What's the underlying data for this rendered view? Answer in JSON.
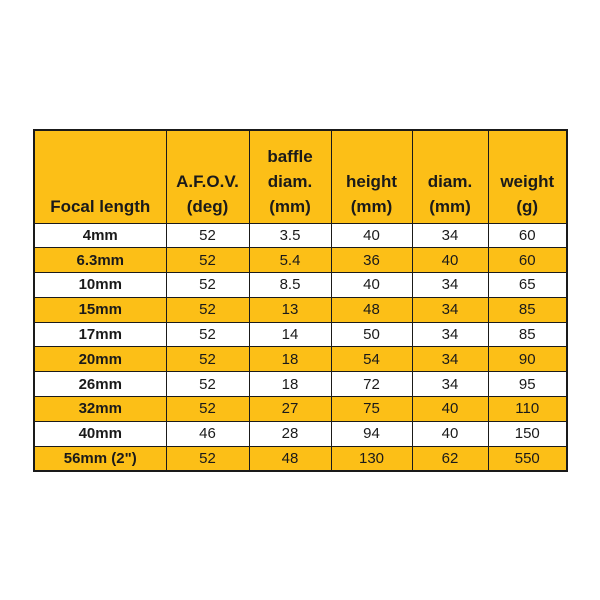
{
  "colors": {
    "accent_gold": "#fcbf17",
    "row_white": "#ffffff",
    "border": "#1a1a1a",
    "text": "#1a1a1a"
  },
  "chart_data": {
    "type": "table",
    "columns": [
      "Focal length",
      "A.F.O.V. (deg)",
      "baffle diam. (mm)",
      "height (mm)",
      "diam. (mm)",
      "weight (g)"
    ],
    "header_lines": [
      [
        "Focal length"
      ],
      [
        "A.F.O.V.",
        "(deg)"
      ],
      [
        "baffle",
        "diam.",
        "(mm)"
      ],
      [
        "height",
        "(mm)"
      ],
      [
        "diam.",
        "(mm)"
      ],
      [
        "weight",
        "(g)"
      ]
    ],
    "rows": [
      [
        "4mm",
        "52",
        "3.5",
        "40",
        "34",
        "60"
      ],
      [
        "6.3mm",
        "52",
        "5.4",
        "36",
        "40",
        "60"
      ],
      [
        "10mm",
        "52",
        "8.5",
        "40",
        "34",
        "65"
      ],
      [
        "15mm",
        "52",
        "13",
        "48",
        "34",
        "85"
      ],
      [
        "17mm",
        "52",
        "14",
        "50",
        "34",
        "85"
      ],
      [
        "20mm",
        "52",
        "18",
        "54",
        "34",
        "90"
      ],
      [
        "26mm",
        "52",
        "18",
        "72",
        "34",
        "95"
      ],
      [
        "32mm",
        "52",
        "27",
        "75",
        "40",
        "110"
      ],
      [
        "40mm",
        "46",
        "28",
        "94",
        "40",
        "150"
      ],
      [
        "56mm (2\")",
        "52",
        "48",
        "130",
        "62",
        "550"
      ]
    ],
    "layout": {
      "striping": "alternating rows, white then gold, starting white",
      "first_column_bold": true,
      "grid": true,
      "legend_position": "none"
    }
  }
}
